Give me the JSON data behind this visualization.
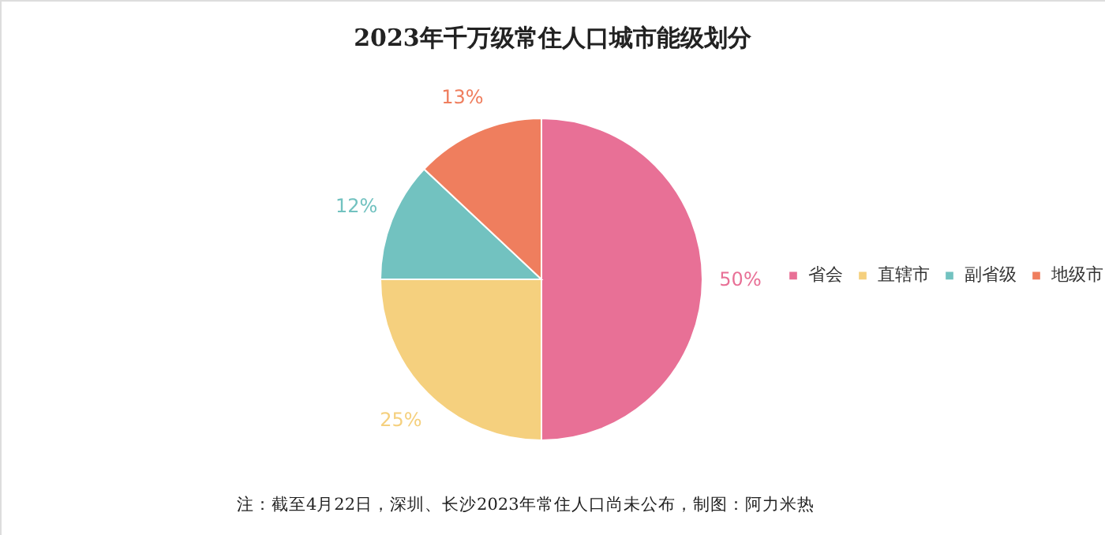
{
  "chart_data": {
    "type": "pie",
    "title": "2023年千万级常住人口城市能级划分",
    "categories": [
      "省会",
      "直辖市",
      "副省级",
      "地级市"
    ],
    "values": [
      50,
      25,
      12,
      13
    ],
    "colors": [
      "#e87096",
      "#f5d07e",
      "#72c2c0",
      "#ef7e5e"
    ],
    "value_labels": [
      "50%",
      "25%",
      "12%",
      "13%"
    ],
    "legend": "right",
    "annotations": [
      "注：截至4月22日，深圳、长沙2023年常住人口尚未公布，制图：阿力米热"
    ]
  }
}
